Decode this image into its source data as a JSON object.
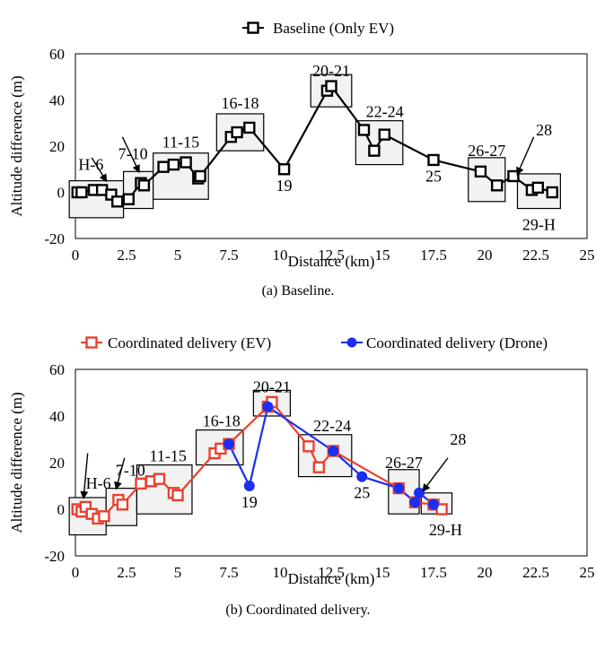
{
  "chart_data": [
    {
      "type": "line",
      "caption": "(a) Baseline.",
      "xlabel": "Distance (km)",
      "ylabel": "Altitude difference (m)",
      "xlim": [
        0,
        25
      ],
      "ylim": [
        -20,
        60
      ],
      "xticks": [
        "0",
        "2.5",
        "5",
        "7.5",
        "10",
        "12.5",
        "15",
        "17.5",
        "20",
        "22.5",
        "25"
      ],
      "yticks": [
        "-20",
        "0",
        "20",
        "40",
        "60"
      ],
      "series": [
        {
          "name": "Baseline (Only EV)",
          "color": "#000000",
          "marker": "square",
          "x": [
            0.1,
            0.3,
            0.9,
            1.3,
            1.75,
            2.05,
            2.6,
            3.2,
            3.35,
            4.3,
            4.8,
            5.4,
            6.0,
            6.1,
            7.6,
            7.9,
            8.5,
            10.2,
            12.3,
            12.5,
            14.1,
            14.6,
            15.1,
            17.5,
            19.8,
            20.6,
            21.4,
            22.3,
            22.6,
            23.3
          ],
          "y": [
            0,
            0,
            1,
            1,
            -1,
            -4,
            -3,
            4,
            3,
            11,
            12,
            13,
            6,
            7,
            24,
            26,
            28,
            10,
            44,
            46,
            27,
            18,
            25,
            14,
            9,
            3,
            7,
            1,
            2,
            0
          ]
        }
      ],
      "groups": [
        {
          "label": "H-6",
          "x0": -0.3,
          "x1": 2.35,
          "y0": -11,
          "y1": 5
        },
        {
          "label": "7-10",
          "x0": 2.35,
          "x1": 3.8,
          "y0": -7,
          "y1": 9
        },
        {
          "label": "11-15",
          "x0": 3.8,
          "x1": 6.5,
          "y0": -3,
          "y1": 17
        },
        {
          "label": "16-18",
          "x0": 6.9,
          "x1": 9.2,
          "y0": 18,
          "y1": 34
        },
        {
          "label": "20-21",
          "x0": 11.5,
          "x1": 13.5,
          "y0": 37,
          "y1": 51
        },
        {
          "label": "22-24",
          "x0": 13.7,
          "x1": 16.0,
          "y0": 12,
          "y1": 31
        },
        {
          "label": "26-27",
          "x0": 19.2,
          "x1": 21.0,
          "y0": -4,
          "y1": 15
        },
        {
          "label": "29-H",
          "x0": 21.6,
          "x1": 23.7,
          "y0": -7,
          "y1": 8
        }
      ],
      "point_labels": [
        {
          "label": "19",
          "x": 10.2,
          "y": 10
        },
        {
          "label": "25",
          "x": 17.5,
          "y": 14
        },
        {
          "label": "28",
          "x": 21.4,
          "y": 7
        }
      ]
    },
    {
      "type": "line",
      "caption": "(b) Coordinated delivery.",
      "xlabel": "Distance (km)",
      "ylabel": "Altitude difference (m)",
      "xlim": [
        0,
        25
      ],
      "ylim": [
        -20,
        60
      ],
      "xticks": [
        "0",
        "2.5",
        "5",
        "7.5",
        "10",
        "12.5",
        "15",
        "17.5",
        "20",
        "22.5",
        "25"
      ],
      "yticks": [
        "-20",
        "0",
        "20",
        "40",
        "60"
      ],
      "series": [
        {
          "name": "Coordinated delivery (EV)",
          "color": "#e8412e",
          "marker": "square",
          "x": [
            0.1,
            0.3,
            0.5,
            0.8,
            1.1,
            1.4,
            2.1,
            2.3,
            3.2,
            3.7,
            4.1,
            4.8,
            5.0,
            6.8,
            7.1,
            7.5,
            9.4,
            9.6,
            11.4,
            11.9,
            12.6,
            15.8,
            16.6,
            17.5,
            17.9
          ],
          "y": [
            0,
            -1,
            1,
            -2,
            -4,
            -3,
            4,
            2,
            11,
            12,
            13,
            7,
            6,
            24,
            26,
            28,
            44,
            46,
            27,
            18,
            25,
            9,
            3,
            2,
            0
          ]
        },
        {
          "name": "Coordinated delivery (Drone)",
          "color": "#1a2ff0",
          "marker": "circle",
          "x": [
            7.5,
            8.5,
            9.4,
            12.6,
            14.0,
            15.8,
            16.6,
            16.8,
            17.5
          ],
          "y": [
            28,
            10,
            44,
            25,
            14,
            9,
            3,
            7,
            2
          ]
        }
      ],
      "groups": [
        {
          "label": "H-6",
          "x0": -0.3,
          "x1": 1.5,
          "y0": -11,
          "y1": 5
        },
        {
          "label": "7-10",
          "x0": 1.5,
          "x1": 3.0,
          "y0": -7,
          "y1": 9
        },
        {
          "label": "11-15",
          "x0": 3.0,
          "x1": 5.7,
          "y0": -2,
          "y1": 19
        },
        {
          "label": "16-18",
          "x0": 5.9,
          "x1": 8.2,
          "y0": 19,
          "y1": 34
        },
        {
          "label": "20-21",
          "x0": 8.7,
          "x1": 10.5,
          "y0": 40,
          "y1": 51
        },
        {
          "label": "22-24",
          "x0": 10.9,
          "x1": 13.5,
          "y0": 14,
          "y1": 32
        },
        {
          "label": "26-27",
          "x0": 15.3,
          "x1": 16.8,
          "y0": -2,
          "y1": 17
        },
        {
          "label": "29-H",
          "x0": 16.9,
          "x1": 18.4,
          "y0": -2,
          "y1": 7
        }
      ],
      "point_labels": [
        {
          "label": "19",
          "x": 8.5,
          "y": 10
        },
        {
          "label": "25",
          "x": 14.0,
          "y": 14
        },
        {
          "label": "28",
          "x": 16.8,
          "y": 7
        }
      ]
    }
  ]
}
